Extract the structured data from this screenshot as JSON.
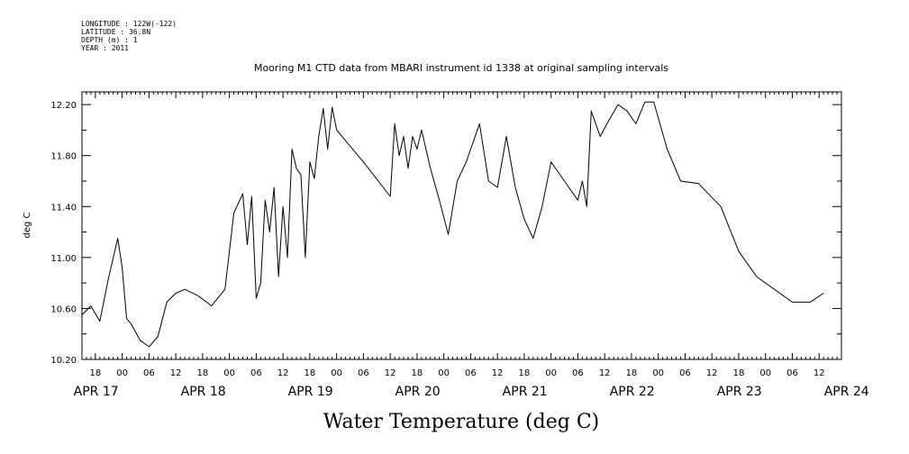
{
  "meta": {
    "longitude": "LONGITUDE : 122W(-122)",
    "latitude": "LATITUDE : 36.8N",
    "depth": "DEPTH (m) : 1",
    "year": "YEAR : 2011"
  },
  "chart_data": {
    "type": "line",
    "title": "Mooring M1 CTD data from MBARI instrument id 1338 at original sampling intervals",
    "xlabel": "Water Temperature (deg C)",
    "ylabel": "deg C",
    "ylim": [
      10.2,
      12.3
    ],
    "y_ticks": [
      "10.20",
      "10.60",
      "11.00",
      "11.40",
      "11.80",
      "12.20"
    ],
    "x_hour_labels": [
      "18",
      "00",
      "06",
      "12",
      "18",
      "00",
      "06",
      "12",
      "18",
      "00",
      "06",
      "12",
      "18",
      "00",
      "06",
      "12",
      "18",
      "00",
      "06",
      "12",
      "18",
      "00",
      "06",
      "12",
      "18",
      "00",
      "06",
      "12",
      "18",
      "00",
      "06",
      "12"
    ],
    "x_day_labels": [
      "APR 17",
      "APR 18",
      "APR 19",
      "APR 20",
      "APR 21",
      "APR 22",
      "APR 23",
      "APR 24"
    ],
    "x_start": "2011-04-17 15:00",
    "x_end": "2011-04-24 17:00",
    "grid": false,
    "series": [
      {
        "color": "#000000",
        "points": [
          [
            "2011-04-17 15:00",
            10.55
          ],
          [
            "2011-04-17 17:00",
            10.62
          ],
          [
            "2011-04-17 19:00",
            10.5
          ],
          [
            "2011-04-17 21:00",
            10.85
          ],
          [
            "2011-04-17 23:00",
            11.15
          ],
          [
            "2011-04-18 00:00",
            10.92
          ],
          [
            "2011-04-18 01:00",
            10.52
          ],
          [
            "2011-04-18 02:00",
            10.48
          ],
          [
            "2011-04-18 04:00",
            10.35
          ],
          [
            "2011-04-18 06:00",
            10.3
          ],
          [
            "2011-04-18 08:00",
            10.38
          ],
          [
            "2011-04-18 10:00",
            10.65
          ],
          [
            "2011-04-18 12:00",
            10.72
          ],
          [
            "2011-04-18 14:00",
            10.75
          ],
          [
            "2011-04-18 17:00",
            10.7
          ],
          [
            "2011-04-18 20:00",
            10.62
          ],
          [
            "2011-04-18 23:00",
            10.75
          ],
          [
            "2011-04-19 01:00",
            11.35
          ],
          [
            "2011-04-19 03:00",
            11.5
          ],
          [
            "2011-04-19 04:00",
            11.1
          ],
          [
            "2011-04-19 05:00",
            11.48
          ],
          [
            "2011-04-19 06:00",
            10.68
          ],
          [
            "2011-04-19 07:00",
            10.8
          ],
          [
            "2011-04-19 08:00",
            11.45
          ],
          [
            "2011-04-19 09:00",
            11.2
          ],
          [
            "2011-04-19 10:00",
            11.55
          ],
          [
            "2011-04-19 11:00",
            10.85
          ],
          [
            "2011-04-19 12:00",
            11.4
          ],
          [
            "2011-04-19 13:00",
            11.0
          ],
          [
            "2011-04-19 14:00",
            11.85
          ],
          [
            "2011-04-19 15:00",
            11.7
          ],
          [
            "2011-04-19 16:00",
            11.65
          ],
          [
            "2011-04-19 17:00",
            11.0
          ],
          [
            "2011-04-19 18:00",
            11.75
          ],
          [
            "2011-04-19 19:00",
            11.62
          ],
          [
            "2011-04-19 20:00",
            11.95
          ],
          [
            "2011-04-19 21:00",
            12.17
          ],
          [
            "2011-04-19 22:00",
            11.85
          ],
          [
            "2011-04-19 23:00",
            12.18
          ],
          [
            "2011-04-20 00:00",
            12.0
          ],
          [
            "2011-04-20 06:00",
            11.75
          ],
          [
            "2011-04-20 12:00",
            11.48
          ],
          [
            "2011-04-20 13:00",
            12.05
          ],
          [
            "2011-04-20 14:00",
            11.8
          ],
          [
            "2011-04-20 15:00",
            11.95
          ],
          [
            "2011-04-20 16:00",
            11.7
          ],
          [
            "2011-04-20 17:00",
            11.95
          ],
          [
            "2011-04-20 18:00",
            11.85
          ],
          [
            "2011-04-20 19:00",
            12.0
          ],
          [
            "2011-04-20 21:00",
            11.7
          ],
          [
            "2011-04-20 23:00",
            11.45
          ],
          [
            "2011-04-21 01:00",
            11.18
          ],
          [
            "2011-04-21 03:00",
            11.6
          ],
          [
            "2011-04-21 05:00",
            11.75
          ],
          [
            "2011-04-21 07:00",
            11.95
          ],
          [
            "2011-04-21 08:00",
            12.05
          ],
          [
            "2011-04-21 10:00",
            11.6
          ],
          [
            "2011-04-21 12:00",
            11.55
          ],
          [
            "2011-04-21 14:00",
            11.95
          ],
          [
            "2011-04-21 16:00",
            11.55
          ],
          [
            "2011-04-21 18:00",
            11.3
          ],
          [
            "2011-04-21 20:00",
            11.15
          ],
          [
            "2011-04-21 22:00",
            11.4
          ],
          [
            "2011-04-22 00:00",
            11.75
          ],
          [
            "2011-04-22 02:00",
            11.65
          ],
          [
            "2011-04-22 04:00",
            11.55
          ],
          [
            "2011-04-22 06:00",
            11.45
          ],
          [
            "2011-04-22 07:00",
            11.6
          ],
          [
            "2011-04-22 08:00",
            11.4
          ],
          [
            "2011-04-22 09:00",
            12.15
          ],
          [
            "2011-04-22 11:00",
            11.95
          ],
          [
            "2011-04-22 13:00",
            12.08
          ],
          [
            "2011-04-22 15:00",
            12.2
          ],
          [
            "2011-04-22 17:00",
            12.15
          ],
          [
            "2011-04-22 19:00",
            12.05
          ],
          [
            "2011-04-22 21:00",
            12.22
          ],
          [
            "2011-04-22 23:00",
            12.22
          ],
          [
            "2011-04-23 02:00",
            11.85
          ],
          [
            "2011-04-23 05:00",
            11.6
          ],
          [
            "2011-04-23 09:00",
            11.58
          ],
          [
            "2011-04-23 14:00",
            11.4
          ],
          [
            "2011-04-23 18:00",
            11.05
          ],
          [
            "2011-04-23 22:00",
            10.85
          ],
          [
            "2011-04-24 02:00",
            10.75
          ],
          [
            "2011-04-24 06:00",
            10.65
          ],
          [
            "2011-04-24 10:00",
            10.65
          ],
          [
            "2011-04-24 13:00",
            10.72
          ]
        ]
      }
    ]
  }
}
